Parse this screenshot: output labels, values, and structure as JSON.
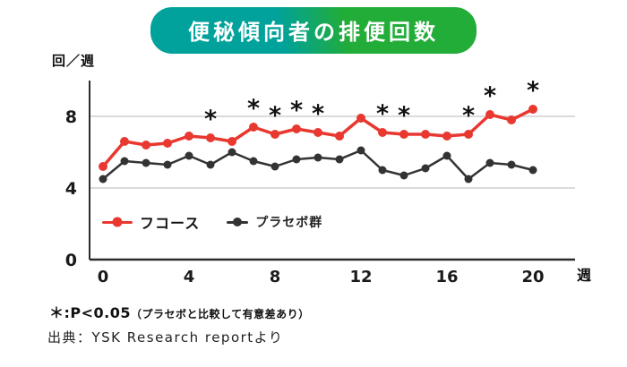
{
  "header": {
    "title": "便秘傾向者の排便回数",
    "banner_colors": {
      "left": "#00a29b",
      "right": "#22ac38"
    }
  },
  "chart_data": {
    "type": "line",
    "title": "便秘傾向者の排便回数",
    "ylabel": "回／週",
    "xlabel": "週",
    "x": [
      0,
      1,
      2,
      3,
      4,
      5,
      6,
      7,
      8,
      9,
      10,
      11,
      12,
      13,
      14,
      15,
      16,
      17,
      18,
      19,
      20
    ],
    "series": [
      {
        "name": "フコース",
        "color": "#e8382f",
        "line_width": 3.5,
        "marker_radius": 5,
        "values": [
          5.2,
          6.6,
          6.4,
          6.5,
          6.9,
          6.8,
          6.6,
          7.4,
          7.0,
          7.3,
          7.1,
          6.9,
          7.9,
          7.1,
          7.0,
          7.0,
          6.9,
          7.0,
          8.1,
          7.8,
          8.4
        ]
      },
      {
        "name": "プラセボ群",
        "color": "#333333",
        "line_width": 2.5,
        "marker_radius": 4.5,
        "values": [
          4.5,
          5.5,
          5.4,
          5.3,
          5.8,
          5.3,
          6.0,
          5.5,
          5.2,
          5.6,
          5.7,
          5.6,
          6.1,
          5.0,
          4.7,
          5.1,
          5.8,
          4.5,
          5.4,
          5.3,
          5.0
        ]
      }
    ],
    "significant_x": [
      5,
      7,
      8,
      9,
      10,
      13,
      14,
      17,
      18,
      20
    ],
    "yticks": [
      0,
      4,
      8
    ],
    "xticks": [
      0,
      4,
      8,
      12,
      16,
      20
    ],
    "ylim": [
      0,
      10
    ],
    "xlim": [
      0,
      20
    ],
    "grid": "horizontal",
    "legend_position": "inside-bottom-left",
    "annotation_symbol": "*"
  },
  "footnotes": {
    "significance_main": "＊:P<0.05",
    "significance_detail": "（プラセボと比較して有意差あり）",
    "source": "出典：YSK Research reportより"
  }
}
